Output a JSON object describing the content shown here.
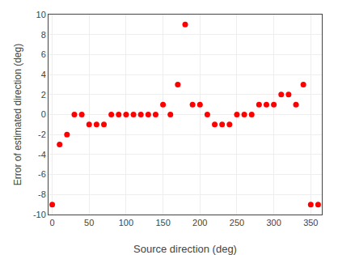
{
  "chart_data": {
    "type": "scatter",
    "xlabel": "Source direction (deg)",
    "ylabel": "Error of estimated direction (deg)",
    "x": [
      0,
      10,
      20,
      30,
      40,
      50,
      60,
      70,
      80,
      90,
      100,
      110,
      120,
      130,
      140,
      150,
      160,
      170,
      180,
      190,
      200,
      210,
      220,
      230,
      240,
      250,
      260,
      270,
      280,
      290,
      300,
      310,
      320,
      330,
      340,
      350,
      360
    ],
    "values": [
      -9,
      -3,
      -2,
      0,
      0,
      -1,
      -1,
      -1,
      0,
      0,
      0,
      0,
      0,
      0,
      0,
      1,
      0,
      3,
      9,
      1,
      1,
      0,
      -1,
      -1,
      -1,
      0,
      0,
      0,
      1,
      1,
      1,
      2,
      2,
      1,
      3,
      -9,
      -9
    ],
    "color": "#ff0000",
    "xlim": [
      -5,
      365
    ],
    "ylim": [
      -10,
      10
    ],
    "xticks": [
      0,
      50,
      100,
      150,
      200,
      250,
      300,
      350
    ],
    "yticks": [
      -10,
      -8,
      -6,
      -4,
      -2,
      0,
      2,
      4,
      6,
      8,
      10
    ],
    "grid": true
  }
}
